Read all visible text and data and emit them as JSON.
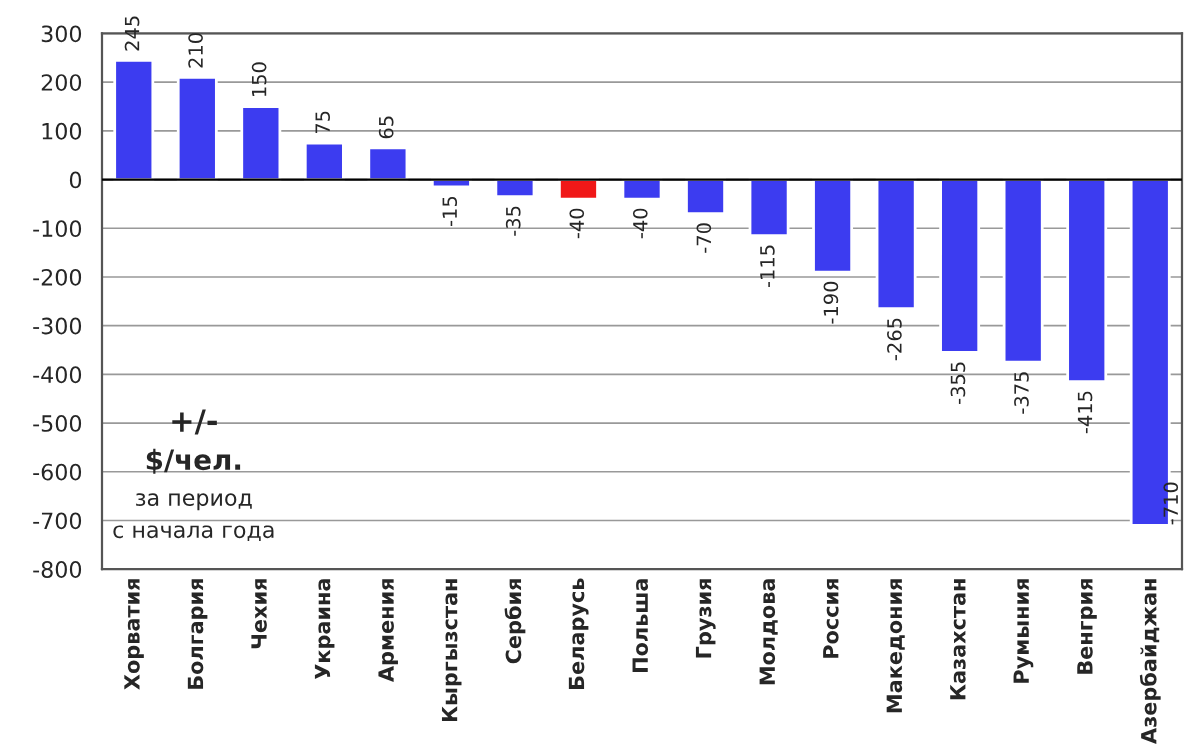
{
  "chart_data": {
    "type": "bar",
    "categories": [
      "Хорватия",
      "Болгария",
      "Чехия",
      "Украина",
      "Армения",
      "Кыргызстан",
      "Сербия",
      "Беларусь",
      "Польша",
      "Грузия",
      "Молдова",
      "Россия",
      "Македония",
      "Казахстан",
      "Румыния",
      "Венгрия",
      "Азербайджан"
    ],
    "values": [
      245,
      210,
      150,
      75,
      65,
      -15,
      -35,
      -40,
      -40,
      -70,
      -115,
      -190,
      -265,
      -355,
      -375,
      -415,
      -710
    ],
    "colors": [
      "#3c3cf0",
      "#3c3cf0",
      "#3c3cf0",
      "#3c3cf0",
      "#3c3cf0",
      "#3c3cf0",
      "#3c3cf0",
      "#f01818",
      "#3c3cf0",
      "#3c3cf0",
      "#3c3cf0",
      "#3c3cf0",
      "#3c3cf0",
      "#3c3cf0",
      "#3c3cf0",
      "#3c3cf0",
      "#3c3cf0"
    ],
    "ylim": [
      -800,
      300
    ],
    "yticks": [
      -800,
      -700,
      -600,
      -500,
      -400,
      -300,
      -200,
      -100,
      0,
      100,
      200,
      300
    ],
    "grid": "y",
    "data_labels": true,
    "annotations": [
      "+/-",
      "$/чел.",
      "за период",
      "с начала года"
    ]
  }
}
